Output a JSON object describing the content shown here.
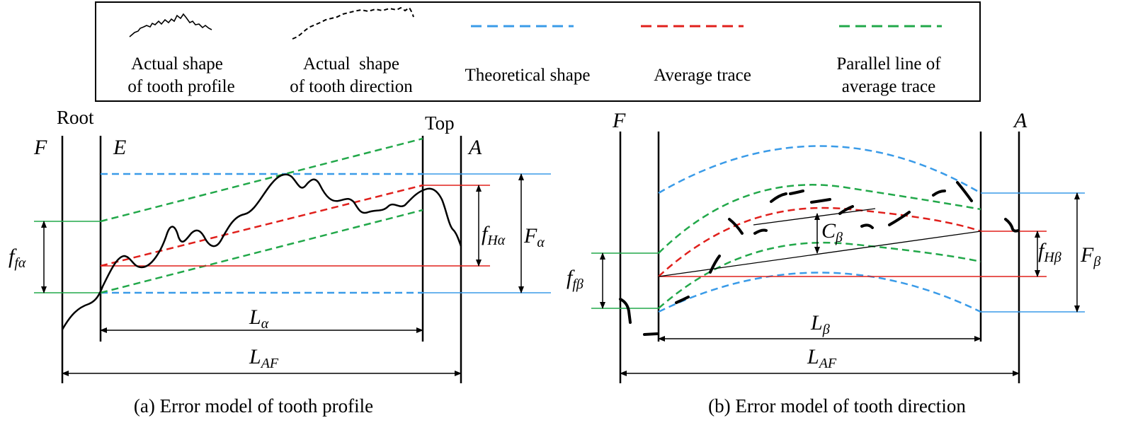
{
  "legend": {
    "items": [
      {
        "line1": "Actual shape",
        "line2": "of tooth profile"
      },
      {
        "line1": "Actual  shape",
        "line2": "of tooth direction"
      },
      {
        "line1": "Theoretical shape",
        "line2": ""
      },
      {
        "line1": "Average trace",
        "line2": ""
      },
      {
        "line1": "Parallel line of",
        "line2": "average trace"
      }
    ]
  },
  "colors": {
    "theoretical": "#3a9be8",
    "average": "#e0201c",
    "parallel": "#22a84a",
    "actual": "#000000"
  },
  "panel_a": {
    "caption": "(a) Error model of tooth profile",
    "root_label": "Root",
    "top_label": "Top",
    "F": "F",
    "E": "E",
    "A": "A",
    "f": "f",
    "f_sub": "fα",
    "fH": "f",
    "fH_sub": "Hα",
    "Fa": "F",
    "Fa_sub": "α",
    "L": "L",
    "L_sub": "α",
    "LAF": "L",
    "LAF_sub": "AF"
  },
  "panel_b": {
    "caption": "(b) Error model of tooth direction",
    "F": "F",
    "A": "A",
    "f": "f",
    "f_sub": "fβ",
    "fH": "f",
    "fH_sub": "Hβ",
    "Fb": "F",
    "Fb_sub": "β",
    "C": "C",
    "C_sub": "β",
    "L": "L",
    "L_sub": "β",
    "LAF": "L",
    "LAF_sub": "AF"
  }
}
